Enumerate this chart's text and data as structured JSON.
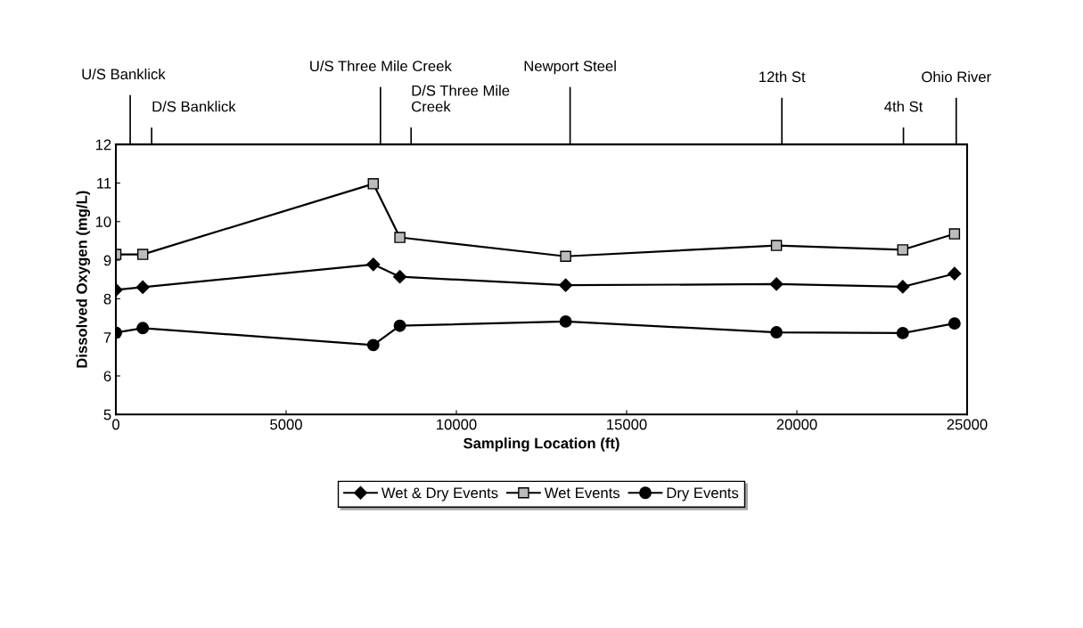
{
  "chart_data": {
    "type": "line",
    "xlabel": "Sampling Location (ft)",
    "ylabel": "Dissolved Oxygen (mg/L)",
    "x": [
      0,
      790,
      7560,
      8340,
      13210,
      19400,
      23110,
      24630
    ],
    "series": [
      {
        "name": "Wet & Dry Events",
        "color": "#000000",
        "marker": "diamond",
        "values": [
          8.23,
          8.3,
          8.89,
          8.57,
          8.35,
          8.38,
          8.31,
          8.65
        ]
      },
      {
        "name": "Wet Events",
        "color": "#000000",
        "marker": "square",
        "values": [
          9.15,
          9.15,
          10.98,
          9.59,
          9.1,
          9.38,
          9.27,
          9.68
        ]
      },
      {
        "name": "Dry Events",
        "color": "#000000",
        "marker": "circle",
        "values": [
          7.12,
          7.24,
          6.8,
          7.3,
          7.41,
          7.13,
          7.11,
          7.36
        ]
      }
    ],
    "xlim": [
      0,
      25000
    ],
    "xticks": [
      0,
      5000,
      10000,
      15000,
      20000,
      25000
    ],
    "ylim": [
      5,
      12
    ],
    "yticks": [
      5,
      6,
      7,
      8,
      9,
      10,
      11,
      12
    ],
    "grid": false,
    "legend": "bottom",
    "ref_lines": [
      {
        "axis": "x",
        "value": 420,
        "label": "U/S Banklick"
      },
      {
        "axis": "x",
        "value": 1050,
        "label": "D/S Banklick"
      },
      {
        "axis": "x",
        "value": 7770,
        "label": "U/S Three Mile Creek"
      },
      {
        "axis": "x",
        "value": 8670,
        "label": "D/S Three Mile\nCreek"
      },
      {
        "axis": "x",
        "value": 13340,
        "label": "Newport Steel"
      },
      {
        "axis": "x",
        "value": 19560,
        "label": "12th St"
      },
      {
        "axis": "x",
        "value": 23130,
        "label": "4th St"
      },
      {
        "axis": "x",
        "value": 24680,
        "label": "Ohio River"
      }
    ]
  }
}
